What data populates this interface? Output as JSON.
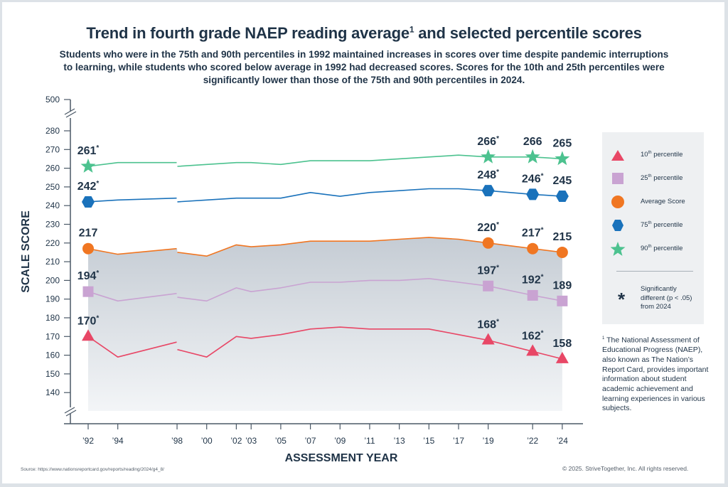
{
  "page": {
    "title": "Trend in fourth grade NAEP reading average",
    "title_superscript": "1",
    "title_suffix": " and selected percentile scores",
    "subtitle": "Students who were in the 75th and 90th percentiles in 1992 maintained increases in scores over time despite pandemic interruptions to learning, while students who scored below average in 1992 had decreased scores. Scores for the 10th and 25th percentiles were significantly lower than those of the 75th and 90th percentiles in 2024.",
    "source": "Source: https://www.nationsreportcard.gov/reports/reading/2024/g4_8/",
    "copyright": "© 2025. StriveTogether, Inc. All rights reserved.",
    "footnote_marker": "1",
    "footnote": " The National Assessment of Educational Progress (NAEP), also known as The Nation’s Report Card, provides important information about student academic achievement and learning experiences in various subjects."
  },
  "legend": {
    "items": [
      {
        "key": "p10",
        "label": "10",
        "sup": "th",
        "rest": " percentile"
      },
      {
        "key": "p25",
        "label": "25",
        "sup": "th",
        "rest": " percentile"
      },
      {
        "key": "avg",
        "label": "Average Score",
        "sup": "",
        "rest": ""
      },
      {
        "key": "p75",
        "label": "75",
        "sup": "th",
        "rest": " percentile"
      },
      {
        "key": "p90",
        "label": "90",
        "sup": "th",
        "rest": " percentile"
      }
    ],
    "significance_symbol": "*",
    "significance_text": "Significantly different (p < .05) from 2024"
  },
  "chart_data": {
    "type": "line",
    "title": "Trend in fourth grade NAEP reading average and selected percentile scores",
    "xlabel": "ASSESSMENT YEAR",
    "ylabel": "SCALE SCORE",
    "ylim": [
      130,
      280
    ],
    "y_break_top_label": "500",
    "yticks": [
      140,
      150,
      160,
      170,
      180,
      190,
      200,
      210,
      220,
      230,
      240,
      250,
      260,
      270,
      280
    ],
    "x": [
      1992,
      1994,
      1998,
      2000,
      2002,
      2003,
      2005,
      2007,
      2009,
      2011,
      2013,
      2015,
      2017,
      2019,
      2022,
      2024
    ],
    "xtick_labels": [
      "’92",
      "’94",
      "’98",
      "’00",
      "’02",
      "’03",
      "’05",
      "’07",
      "’09",
      "’11",
      "’13",
      "’15",
      "’17",
      "’19",
      "’22",
      "’24"
    ],
    "grid": false,
    "legend_position": "right",
    "note": "1998 has two values: left segment without accommodations, right segment with accommodations",
    "series": [
      {
        "key": "p90",
        "name": "90th percentile",
        "color": "#4cc28f",
        "marker": "star",
        "segment1": {
          "x": [
            1992,
            1994,
            1998
          ],
          "y": [
            261,
            263,
            263
          ]
        },
        "segment2": {
          "x": [
            1998,
            2000,
            2002,
            2003,
            2005,
            2007,
            2009,
            2011,
            2013,
            2015,
            2017,
            2019,
            2022,
            2024
          ],
          "y": [
            261,
            262,
            263,
            263,
            262,
            264,
            264,
            264,
            265,
            266,
            267,
            266,
            266,
            265
          ]
        },
        "labels": [
          {
            "x": 1992,
            "text": "261",
            "sig": true
          },
          {
            "x": 2019,
            "text": "266",
            "sig": true
          },
          {
            "x": 2022,
            "text": "266",
            "sig": false
          },
          {
            "x": 2024,
            "text": "265",
            "sig": false
          }
        ]
      },
      {
        "key": "p75",
        "name": "75th percentile",
        "color": "#1a72bb",
        "marker": "hexagon",
        "segment1": {
          "x": [
            1992,
            1994,
            1998
          ],
          "y": [
            242,
            243,
            244
          ]
        },
        "segment2": {
          "x": [
            1998,
            2000,
            2002,
            2003,
            2005,
            2007,
            2009,
            2011,
            2013,
            2015,
            2017,
            2019,
            2022,
            2024
          ],
          "y": [
            242,
            243,
            244,
            244,
            244,
            247,
            245,
            247,
            248,
            249,
            249,
            248,
            246,
            245
          ]
        },
        "labels": [
          {
            "x": 1992,
            "text": "242",
            "sig": true
          },
          {
            "x": 2019,
            "text": "248",
            "sig": true
          },
          {
            "x": 2022,
            "text": "246",
            "sig": true
          },
          {
            "x": 2024,
            "text": "245",
            "sig": false
          }
        ]
      },
      {
        "key": "avg",
        "name": "Average Score",
        "color": "#f07622",
        "marker": "circle",
        "segment1": {
          "x": [
            1992,
            1994,
            1998
          ],
          "y": [
            217,
            214,
            217
          ]
        },
        "segment2": {
          "x": [
            1998,
            2000,
            2002,
            2003,
            2005,
            2007,
            2009,
            2011,
            2013,
            2015,
            2017,
            2019,
            2022,
            2024
          ],
          "y": [
            215,
            213,
            219,
            218,
            219,
            221,
            221,
            221,
            222,
            223,
            222,
            220,
            217,
            215
          ]
        },
        "labels": [
          {
            "x": 1992,
            "text": "217",
            "sig": false
          },
          {
            "x": 2019,
            "text": "220",
            "sig": true
          },
          {
            "x": 2022,
            "text": "217",
            "sig": true
          },
          {
            "x": 2024,
            "text": "215",
            "sig": false
          }
        ]
      },
      {
        "key": "p25",
        "name": "25th percentile",
        "color": "#c9a3d2",
        "marker": "square",
        "segment1": {
          "x": [
            1992,
            1994,
            1998
          ],
          "y": [
            194,
            189,
            193
          ]
        },
        "segment2": {
          "x": [
            1998,
            2000,
            2002,
            2003,
            2005,
            2007,
            2009,
            2011,
            2013,
            2015,
            2017,
            2019,
            2022,
            2024
          ],
          "y": [
            191,
            189,
            196,
            194,
            196,
            199,
            199,
            200,
            200,
            201,
            199,
            197,
            192,
            189
          ]
        },
        "labels": [
          {
            "x": 1992,
            "text": "194",
            "sig": true
          },
          {
            "x": 2019,
            "text": "197",
            "sig": true
          },
          {
            "x": 2022,
            "text": "192",
            "sig": true
          },
          {
            "x": 2024,
            "text": "189",
            "sig": false
          }
        ]
      },
      {
        "key": "p10",
        "name": "10th percentile",
        "color": "#e84766",
        "marker": "triangle",
        "segment1": {
          "x": [
            1992,
            1994,
            1998
          ],
          "y": [
            170,
            159,
            167
          ]
        },
        "segment2": {
          "x": [
            1998,
            2000,
            2002,
            2003,
            2005,
            2007,
            2009,
            2011,
            2013,
            2015,
            2017,
            2019,
            2022,
            2024
          ],
          "y": [
            163,
            159,
            170,
            169,
            171,
            174,
            175,
            174,
            174,
            174,
            171,
            168,
            162,
            158
          ]
        },
        "labels": [
          {
            "x": 1992,
            "text": "170",
            "sig": true
          },
          {
            "x": 2019,
            "text": "168",
            "sig": true
          },
          {
            "x": 2022,
            "text": "162",
            "sig": true
          },
          {
            "x": 2024,
            "text": "158",
            "sig": false
          }
        ]
      }
    ],
    "marker_years": [
      1992,
      2019,
      2022,
      2024
    ]
  }
}
